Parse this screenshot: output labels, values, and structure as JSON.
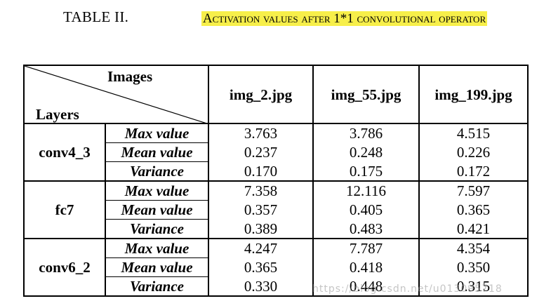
{
  "caption": {
    "label": "TABLE II.",
    "title": "Activation values after 1*1 convolutional operator"
  },
  "table": {
    "corner_top": "Images",
    "corner_bottom": "Layers",
    "columns": [
      "img_2.jpg",
      "img_55.jpg",
      "img_199.jpg"
    ],
    "groups": [
      {
        "layer": "conv4_3",
        "rows": [
          {
            "metric": "Max value",
            "values": [
              "3.763",
              "3.786",
              "4.515"
            ]
          },
          {
            "metric": "Mean value",
            "values": [
              "0.237",
              "0.248",
              "0.226"
            ]
          },
          {
            "metric": "Variance",
            "values": [
              "0.170",
              "0.175",
              "0.172"
            ]
          }
        ]
      },
      {
        "layer": "fc7",
        "rows": [
          {
            "metric": "Max value",
            "values": [
              "7.358",
              "12.116",
              "7.597"
            ]
          },
          {
            "metric": "Mean value",
            "values": [
              "0.357",
              "0.405",
              "0.365"
            ]
          },
          {
            "metric": "Variance",
            "values": [
              "0.389",
              "0.483",
              "0.421"
            ]
          }
        ]
      },
      {
        "layer": "conv6_2",
        "rows": [
          {
            "metric": "Max value",
            "values": [
              "4.247",
              "7.787",
              "4.354"
            ]
          },
          {
            "metric": "Mean value",
            "values": [
              "0.365",
              "0.418",
              "0.350"
            ]
          },
          {
            "metric": "Variance",
            "values": [
              "0.330",
              "0.448",
              "0.315"
            ]
          }
        ]
      }
    ]
  },
  "watermark": "https://blog.csdn.net/u013095718"
}
